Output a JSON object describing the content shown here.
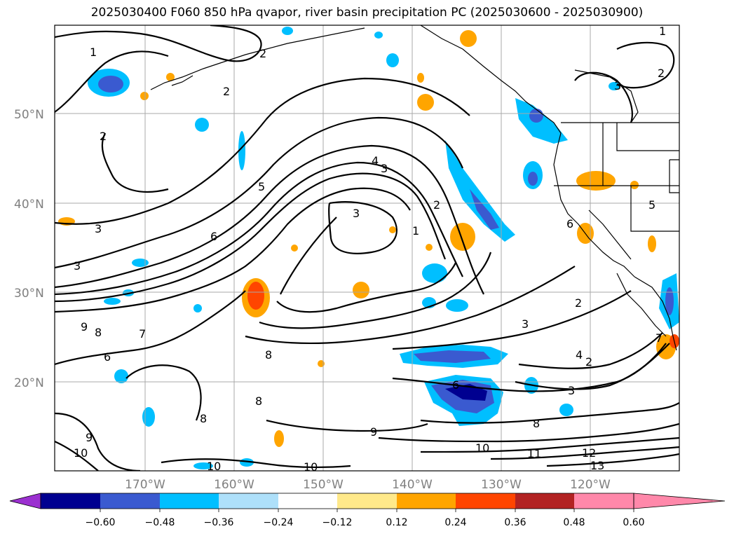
{
  "title": "2025030400 F060 850 hPa qvapor, river basin precipitation PC (2025030600 - 2025030900)",
  "map": {
    "lat_labels": [
      "50°N",
      "40°N",
      "30°N",
      "20°N"
    ],
    "lon_labels": [
      "170°W",
      "160°W",
      "150°W",
      "140°W",
      "130°W",
      "120°W"
    ],
    "contour_labels": [
      "1",
      "2",
      "2",
      "2",
      "2",
      "1",
      "3",
      "3",
      "3",
      "4",
      "3",
      "5",
      "6",
      "7",
      "8",
      "9",
      "3",
      "1",
      "2",
      "2",
      "3",
      "4",
      "2",
      "3",
      "8",
      "8",
      "9",
      "10",
      "10",
      "10",
      "10",
      "11",
      "12",
      "13",
      "6",
      "7",
      "8",
      "9",
      "6",
      "5",
      "6",
      "8"
    ]
  },
  "colorbar": {
    "ticks": [
      "−0.60",
      "−0.48",
      "−0.36",
      "−0.24",
      "−0.12",
      "0.12",
      "0.24",
      "0.36",
      "0.48",
      "0.60"
    ],
    "colors": [
      "#9b30d0",
      "#000090",
      "#3a5ad0",
      "#00bfff",
      "#aee0fa",
      "#ffffff",
      "#ffe98a",
      "#ffa500",
      "#ff4500",
      "#b22222",
      "#ff88aa"
    ]
  }
}
